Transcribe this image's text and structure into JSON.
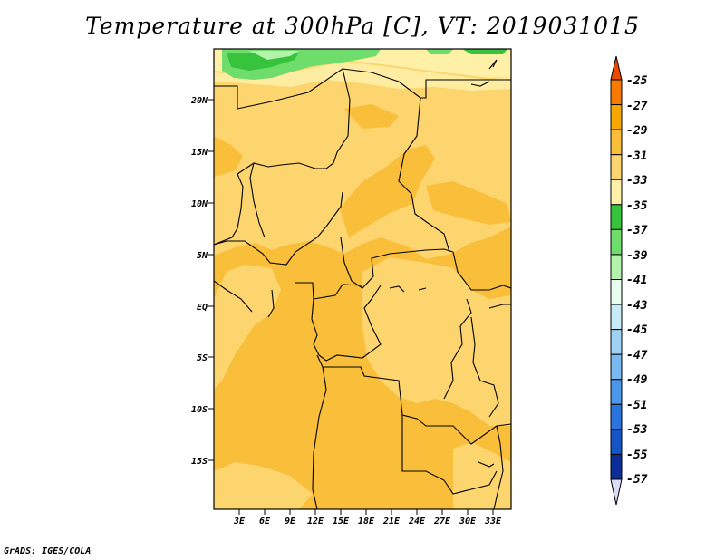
{
  "title": "Temperature at 300hPa [C], VT: 2019031015",
  "credit": "GrADS: IGES/COLA",
  "map": {
    "lat_labels": [
      "20N",
      "15N",
      "10N",
      "5N",
      "EQ",
      "5S",
      "10S",
      "15S"
    ],
    "lon_labels": [
      "3E",
      "6E",
      "9E",
      "12E",
      "15E",
      "18E",
      "21E",
      "24E",
      "27E",
      "30E",
      "33E"
    ]
  },
  "colorbar": {
    "levels": [
      "-25",
      "-27",
      "-29",
      "-31",
      "-33",
      "-35",
      "-37",
      "-39",
      "-41",
      "-43",
      "-45",
      "-47",
      "-49",
      "-51",
      "-53",
      "-55",
      "-57"
    ],
    "colors": [
      "#e64b00",
      "#f97a00",
      "#f7a800",
      "#f9bf3a",
      "#fcd56e",
      "#fef0a6",
      "#37c33c",
      "#6fdd6b",
      "#b4f3ac",
      "#e6fff0",
      "#c8ebf8",
      "#9fd3f6",
      "#78b9f0",
      "#4b98ea",
      "#2b73dd",
      "#1454c4",
      "#0a2d97",
      "#0a0a6e",
      "#dcdcf5"
    ]
  }
}
